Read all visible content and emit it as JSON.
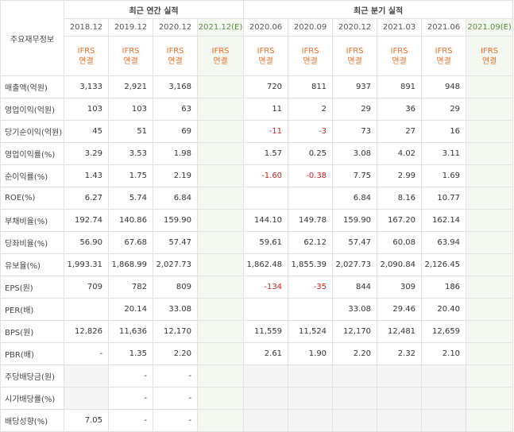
{
  "header": {
    "row_label": "주요재무정보",
    "annual_title": "최근 연간 실적",
    "quarter_title": "최근 분기 실적",
    "periods": [
      "2018.12",
      "2019.12",
      "2020.12",
      "2021.12(E)",
      "2020.06",
      "2020.09",
      "2020.12",
      "2021.03",
      "2021.06",
      "2021.09(E)"
    ],
    "standard_top": "IFRS",
    "standard_bottom": "연결"
  },
  "rows": [
    {
      "label": "매출액(억원)",
      "values": [
        "3,133",
        "2,921",
        "3,168",
        "",
        "720",
        "811",
        "937",
        "891",
        "948",
        ""
      ]
    },
    {
      "label": "영업이익(억원)",
      "values": [
        "103",
        "103",
        "63",
        "",
        "11",
        "2",
        "29",
        "36",
        "29",
        ""
      ]
    },
    {
      "label": "당기순이익(억원)",
      "values": [
        "45",
        "51",
        "69",
        "",
        "-11",
        "-3",
        "73",
        "27",
        "16",
        ""
      ]
    },
    {
      "label": "영업이익률(%)",
      "values": [
        "3.29",
        "3.53",
        "1.98",
        "",
        "1.57",
        "0.25",
        "3.08",
        "4.02",
        "3.11",
        ""
      ]
    },
    {
      "label": "순이익률(%)",
      "values": [
        "1.43",
        "1.75",
        "2.19",
        "",
        "-1.60",
        "-0.38",
        "7.75",
        "2.99",
        "1.69",
        ""
      ]
    },
    {
      "label": "ROE(%)",
      "values": [
        "6.27",
        "5.74",
        "6.84",
        "",
        "",
        "",
        "6.84",
        "8.16",
        "10.77",
        ""
      ]
    },
    {
      "label": "부채비율(%)",
      "values": [
        "192.74",
        "140.86",
        "159.90",
        "",
        "144.10",
        "149.78",
        "159.90",
        "167.20",
        "162.14",
        ""
      ]
    },
    {
      "label": "당좌비율(%)",
      "values": [
        "56.90",
        "67.68",
        "57.47",
        "",
        "59.61",
        "62.12",
        "57.47",
        "60.08",
        "63.94",
        ""
      ]
    },
    {
      "label": "유보율(%)",
      "values": [
        "1,993.31",
        "1,868.99",
        "2,027.73",
        "",
        "1,862.48",
        "1,855.39",
        "2,027.73",
        "2,090.84",
        "2,126.45",
        ""
      ]
    },
    {
      "label": "EPS(원)",
      "values": [
        "709",
        "782",
        "809",
        "",
        "-134",
        "-35",
        "844",
        "309",
        "186",
        ""
      ]
    },
    {
      "label": "PER(배)",
      "values": [
        "",
        "20.14",
        "33.08",
        "",
        "",
        "",
        "33.08",
        "29.46",
        "20.40",
        ""
      ]
    },
    {
      "label": "BPS(원)",
      "values": [
        "12,826",
        "11,636",
        "12,170",
        "",
        "11,559",
        "11,524",
        "12,170",
        "12,481",
        "12,659",
        ""
      ]
    },
    {
      "label": "PBR(배)",
      "values": [
        "-",
        "1.35",
        "2.20",
        "",
        "2.61",
        "1.90",
        "2.20",
        "2.32",
        "2.10",
        ""
      ]
    },
    {
      "label": "주당배당금(원)",
      "values": [
        "",
        "-",
        "-",
        "",
        "",
        "",
        "",
        "",
        "",
        ""
      ]
    },
    {
      "label": "시가배당률(%)",
      "values": [
        "",
        "-",
        "-",
        "",
        "",
        "",
        "",
        "",
        "",
        ""
      ]
    },
    {
      "label": "배당성향(%)",
      "values": [
        "7.05",
        "-",
        "-",
        "",
        "",
        "",
        "",
        "",
        "",
        ""
      ]
    }
  ]
}
